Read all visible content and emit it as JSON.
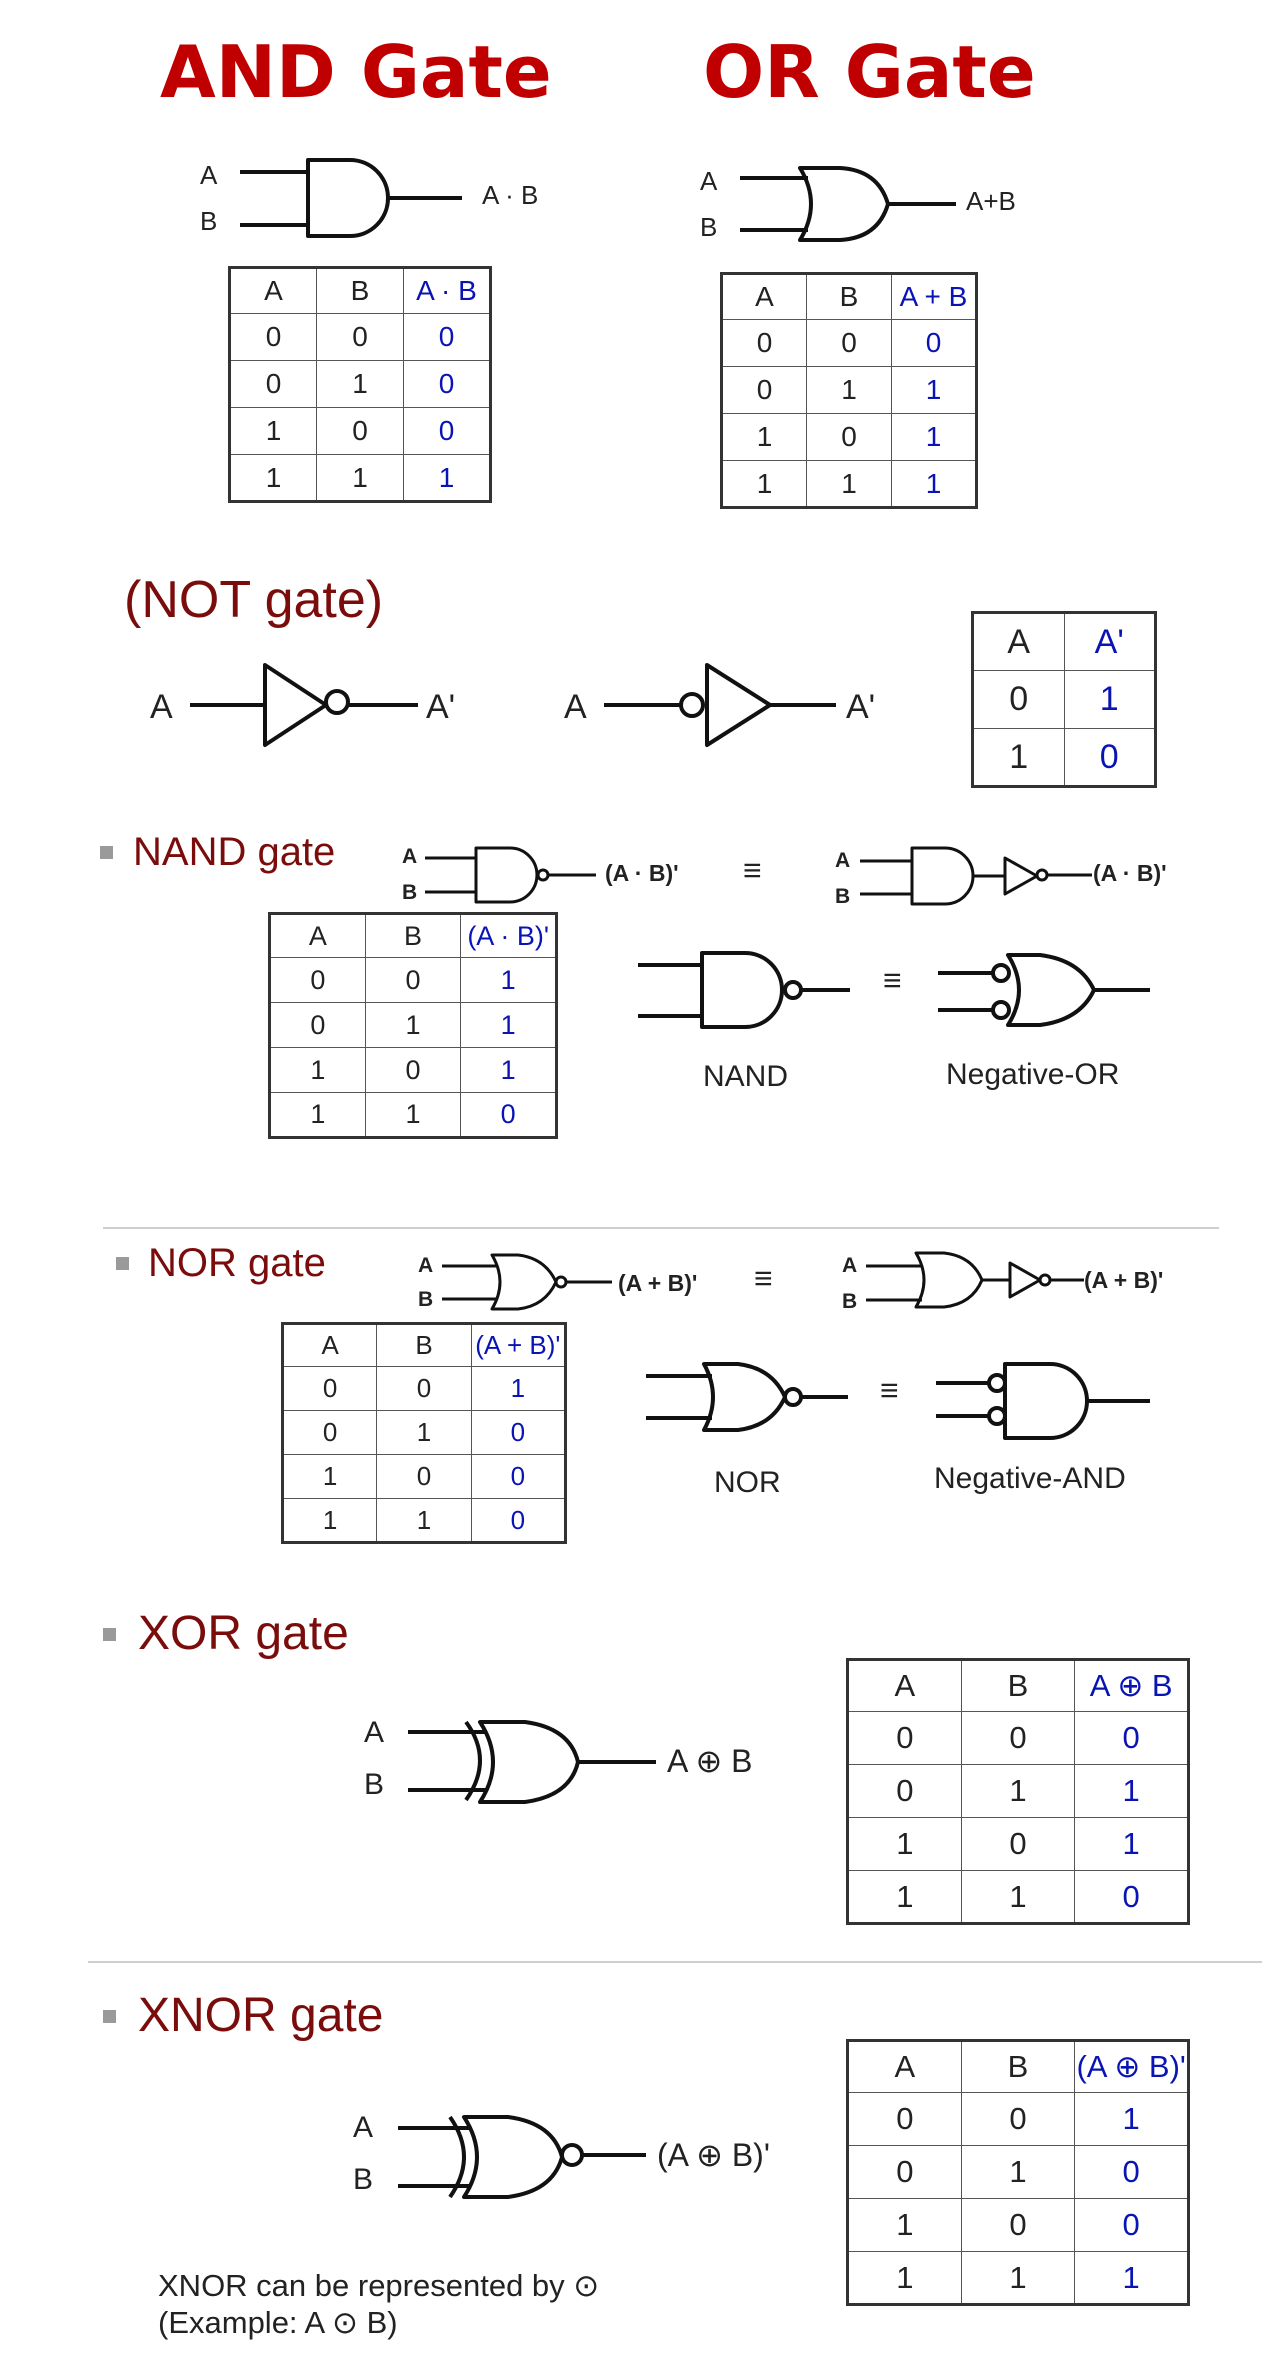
{
  "and": {
    "title": "AND Gate",
    "in_a": "A",
    "in_b": "B",
    "out": "A · B",
    "table": {
      "headers": [
        "A",
        "B",
        "A · B"
      ],
      "rows": [
        [
          "0",
          "0",
          "0"
        ],
        [
          "0",
          "1",
          "0"
        ],
        [
          "1",
          "0",
          "0"
        ],
        [
          "1",
          "1",
          "1"
        ]
      ]
    }
  },
  "or": {
    "title": "OR Gate",
    "in_a": "A",
    "in_b": "B",
    "out": "A+B",
    "table": {
      "headers": [
        "A",
        "B",
        "A + B"
      ],
      "rows": [
        [
          "0",
          "0",
          "0"
        ],
        [
          "0",
          "1",
          "1"
        ],
        [
          "1",
          "0",
          "1"
        ],
        [
          "1",
          "1",
          "1"
        ]
      ]
    }
  },
  "not": {
    "title": "(NOT gate)",
    "in1": "A",
    "out1": "A'",
    "in2": "A",
    "out2": "A'",
    "table": {
      "headers": [
        "A",
        "A'"
      ],
      "rows": [
        [
          "0",
          "1"
        ],
        [
          "1",
          "0"
        ]
      ]
    }
  },
  "nand": {
    "title": "NAND gate",
    "in_a": "A",
    "in_b": "B",
    "out1": "(A · B)'",
    "equiv": "≡",
    "in_a2": "A",
    "in_b2": "B",
    "out2": "(A · B)'",
    "caption_left": "NAND",
    "equiv2": "≡",
    "caption_right": "Negative-OR",
    "table": {
      "headers": [
        "A",
        "B",
        "(A · B)'"
      ],
      "rows": [
        [
          "0",
          "0",
          "1"
        ],
        [
          "0",
          "1",
          "1"
        ],
        [
          "1",
          "0",
          "1"
        ],
        [
          "1",
          "1",
          "0"
        ]
      ]
    }
  },
  "nor": {
    "title": "NOR gate",
    "in_a": "A",
    "in_b": "B",
    "out1": "(A + B)'",
    "equiv": "≡",
    "in_a2": "A",
    "in_b2": "B",
    "out2": "(A + B)'",
    "caption_left": "NOR",
    "equiv2": "≡",
    "caption_right": "Negative-AND",
    "table": {
      "headers": [
        "A",
        "B",
        "(A + B)'"
      ],
      "rows": [
        [
          "0",
          "0",
          "1"
        ],
        [
          "0",
          "1",
          "0"
        ],
        [
          "1",
          "0",
          "0"
        ],
        [
          "1",
          "1",
          "0"
        ]
      ]
    }
  },
  "xor": {
    "title": "XOR gate",
    "in_a": "A",
    "in_b": "B",
    "out": "A ⊕ B",
    "table": {
      "headers": [
        "A",
        "B",
        "A ⊕ B"
      ],
      "rows": [
        [
          "0",
          "0",
          "0"
        ],
        [
          "0",
          "1",
          "1"
        ],
        [
          "1",
          "0",
          "1"
        ],
        [
          "1",
          "1",
          "0"
        ]
      ]
    }
  },
  "xnor": {
    "title": "XNOR gate",
    "in_a": "A",
    "in_b": "B",
    "out": "(A ⊕ B)'",
    "note_line1": "XNOR can be represented by ⊙",
    "note_line2": "(Example: A ⊙ B)",
    "table": {
      "headers": [
        "A",
        "B",
        "(A ⊕ B)'"
      ],
      "rows": [
        [
          "0",
          "0",
          "1"
        ],
        [
          "0",
          "1",
          "0"
        ],
        [
          "1",
          "0",
          "0"
        ],
        [
          "1",
          "1",
          "1"
        ]
      ]
    }
  }
}
